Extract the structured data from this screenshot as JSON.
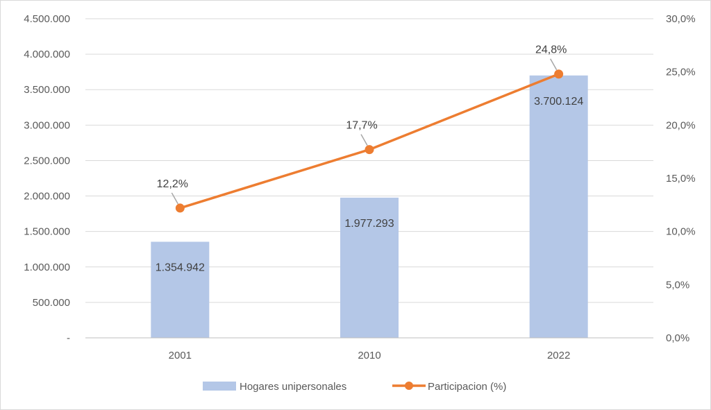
{
  "chart_data": {
    "type": "bar",
    "categories": [
      "2001",
      "2010",
      "2022"
    ],
    "series": [
      {
        "name": "Hogares unipersonales",
        "type": "bar",
        "axis": "left",
        "values": [
          1354942,
          1977293,
          3700124
        ],
        "labels": [
          "1.354.942",
          "1.977.293",
          "3.700.124"
        ],
        "color": "#b4c7e7"
      },
      {
        "name": "Participacion (%)",
        "type": "line",
        "axis": "right",
        "values": [
          12.2,
          17.7,
          24.8
        ],
        "labels": [
          "12,2%",
          "17,7%",
          "24,8%"
        ],
        "color": "#ed7d31"
      }
    ],
    "y_left": {
      "ylim": [
        0,
        4500000
      ],
      "ticks": [
        0,
        500000,
        1000000,
        1500000,
        2000000,
        2500000,
        3000000,
        3500000,
        4000000,
        4500000
      ],
      "tick_labels": [
        "-",
        "500.000",
        "1.000.000",
        "1.500.000",
        "2.000.000",
        "2.500.000",
        "3.000.000",
        "3.500.000",
        "4.000.000",
        "4.500.000"
      ]
    },
    "y_right": {
      "ylim": [
        0,
        30
      ],
      "ticks": [
        0,
        5,
        10,
        15,
        20,
        25,
        30
      ],
      "tick_labels": [
        "0,0%",
        "5,0%",
        "10,0%",
        "15,0%",
        "20,0%",
        "25,0%",
        "30,0%"
      ]
    },
    "grid": true,
    "legend": "bottom",
    "gridline_color": "#d9d9d9"
  }
}
